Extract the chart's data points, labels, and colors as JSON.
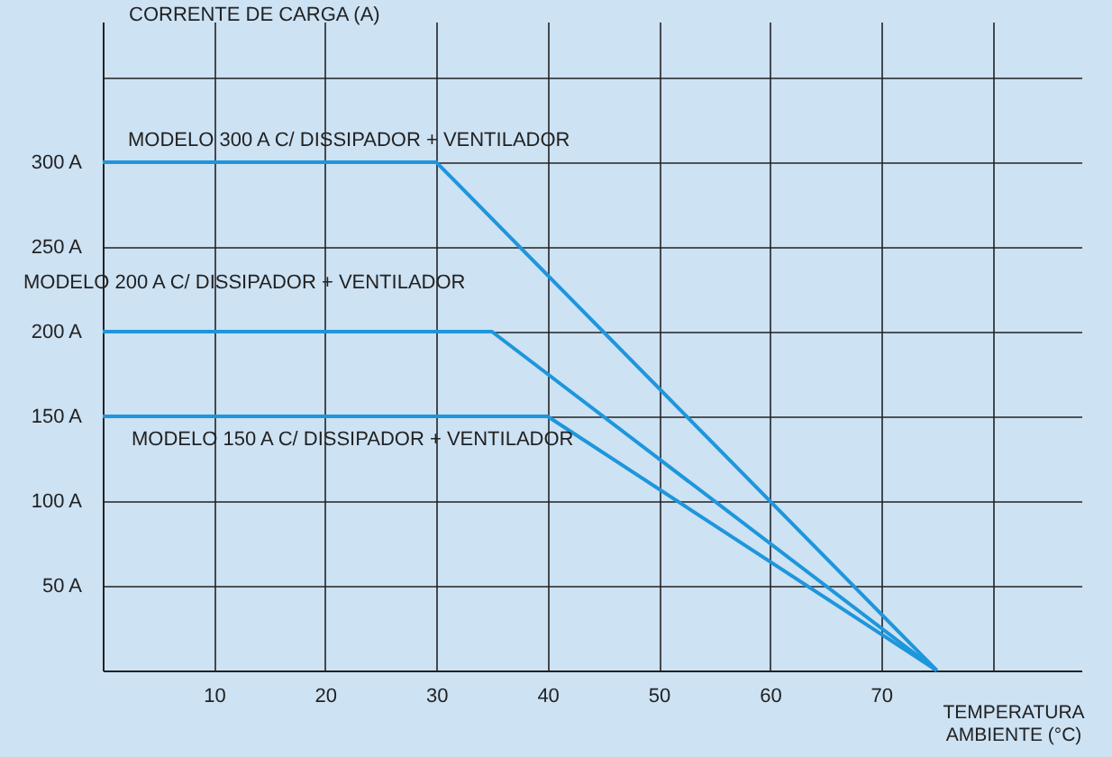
{
  "chart_data": {
    "type": "line",
    "ylabel": "CORRENTE DE CARGA (A)",
    "xlabel": "TEMPERATURA\nAMBIENTE (°C)",
    "xlim": [
      0,
      88
    ],
    "ylim": [
      0,
      383
    ],
    "xticks": [
      10,
      20,
      30,
      40,
      50,
      60,
      70,
      {
        "value": 80,
        "label": null
      }
    ],
    "yticks": [
      {
        "value": 50,
        "label": "50 A"
      },
      {
        "value": 100,
        "label": "100 A"
      },
      {
        "value": 150,
        "label": "150 A"
      },
      {
        "value": 200,
        "label": "200 A"
      },
      {
        "value": 250,
        "label": "250 A"
      },
      {
        "value": 300,
        "label": "300 A"
      },
      {
        "value": 350,
        "label": null
      }
    ],
    "grid": true,
    "marker": "none",
    "line_style": "solid",
    "series": [
      {
        "name": "MODELO 300 A C/ DISSIPADOR + VENTILADOR",
        "color": "#1e96dc",
        "x": [
          0,
          30,
          75
        ],
        "values": [
          300,
          300,
          0
        ]
      },
      {
        "name": "MODELO 200 A C/ DISSIPADOR + VENTILADOR",
        "color": "#1e96dc",
        "x": [
          0,
          35,
          75
        ],
        "values": [
          200,
          200,
          0
        ]
      },
      {
        "name": "MODELO 150 A C/ DISSIPADOR + VENTILADOR",
        "color": "#1e96dc",
        "x": [
          0,
          40,
          75
        ],
        "values": [
          150,
          150,
          0
        ]
      }
    ]
  }
}
